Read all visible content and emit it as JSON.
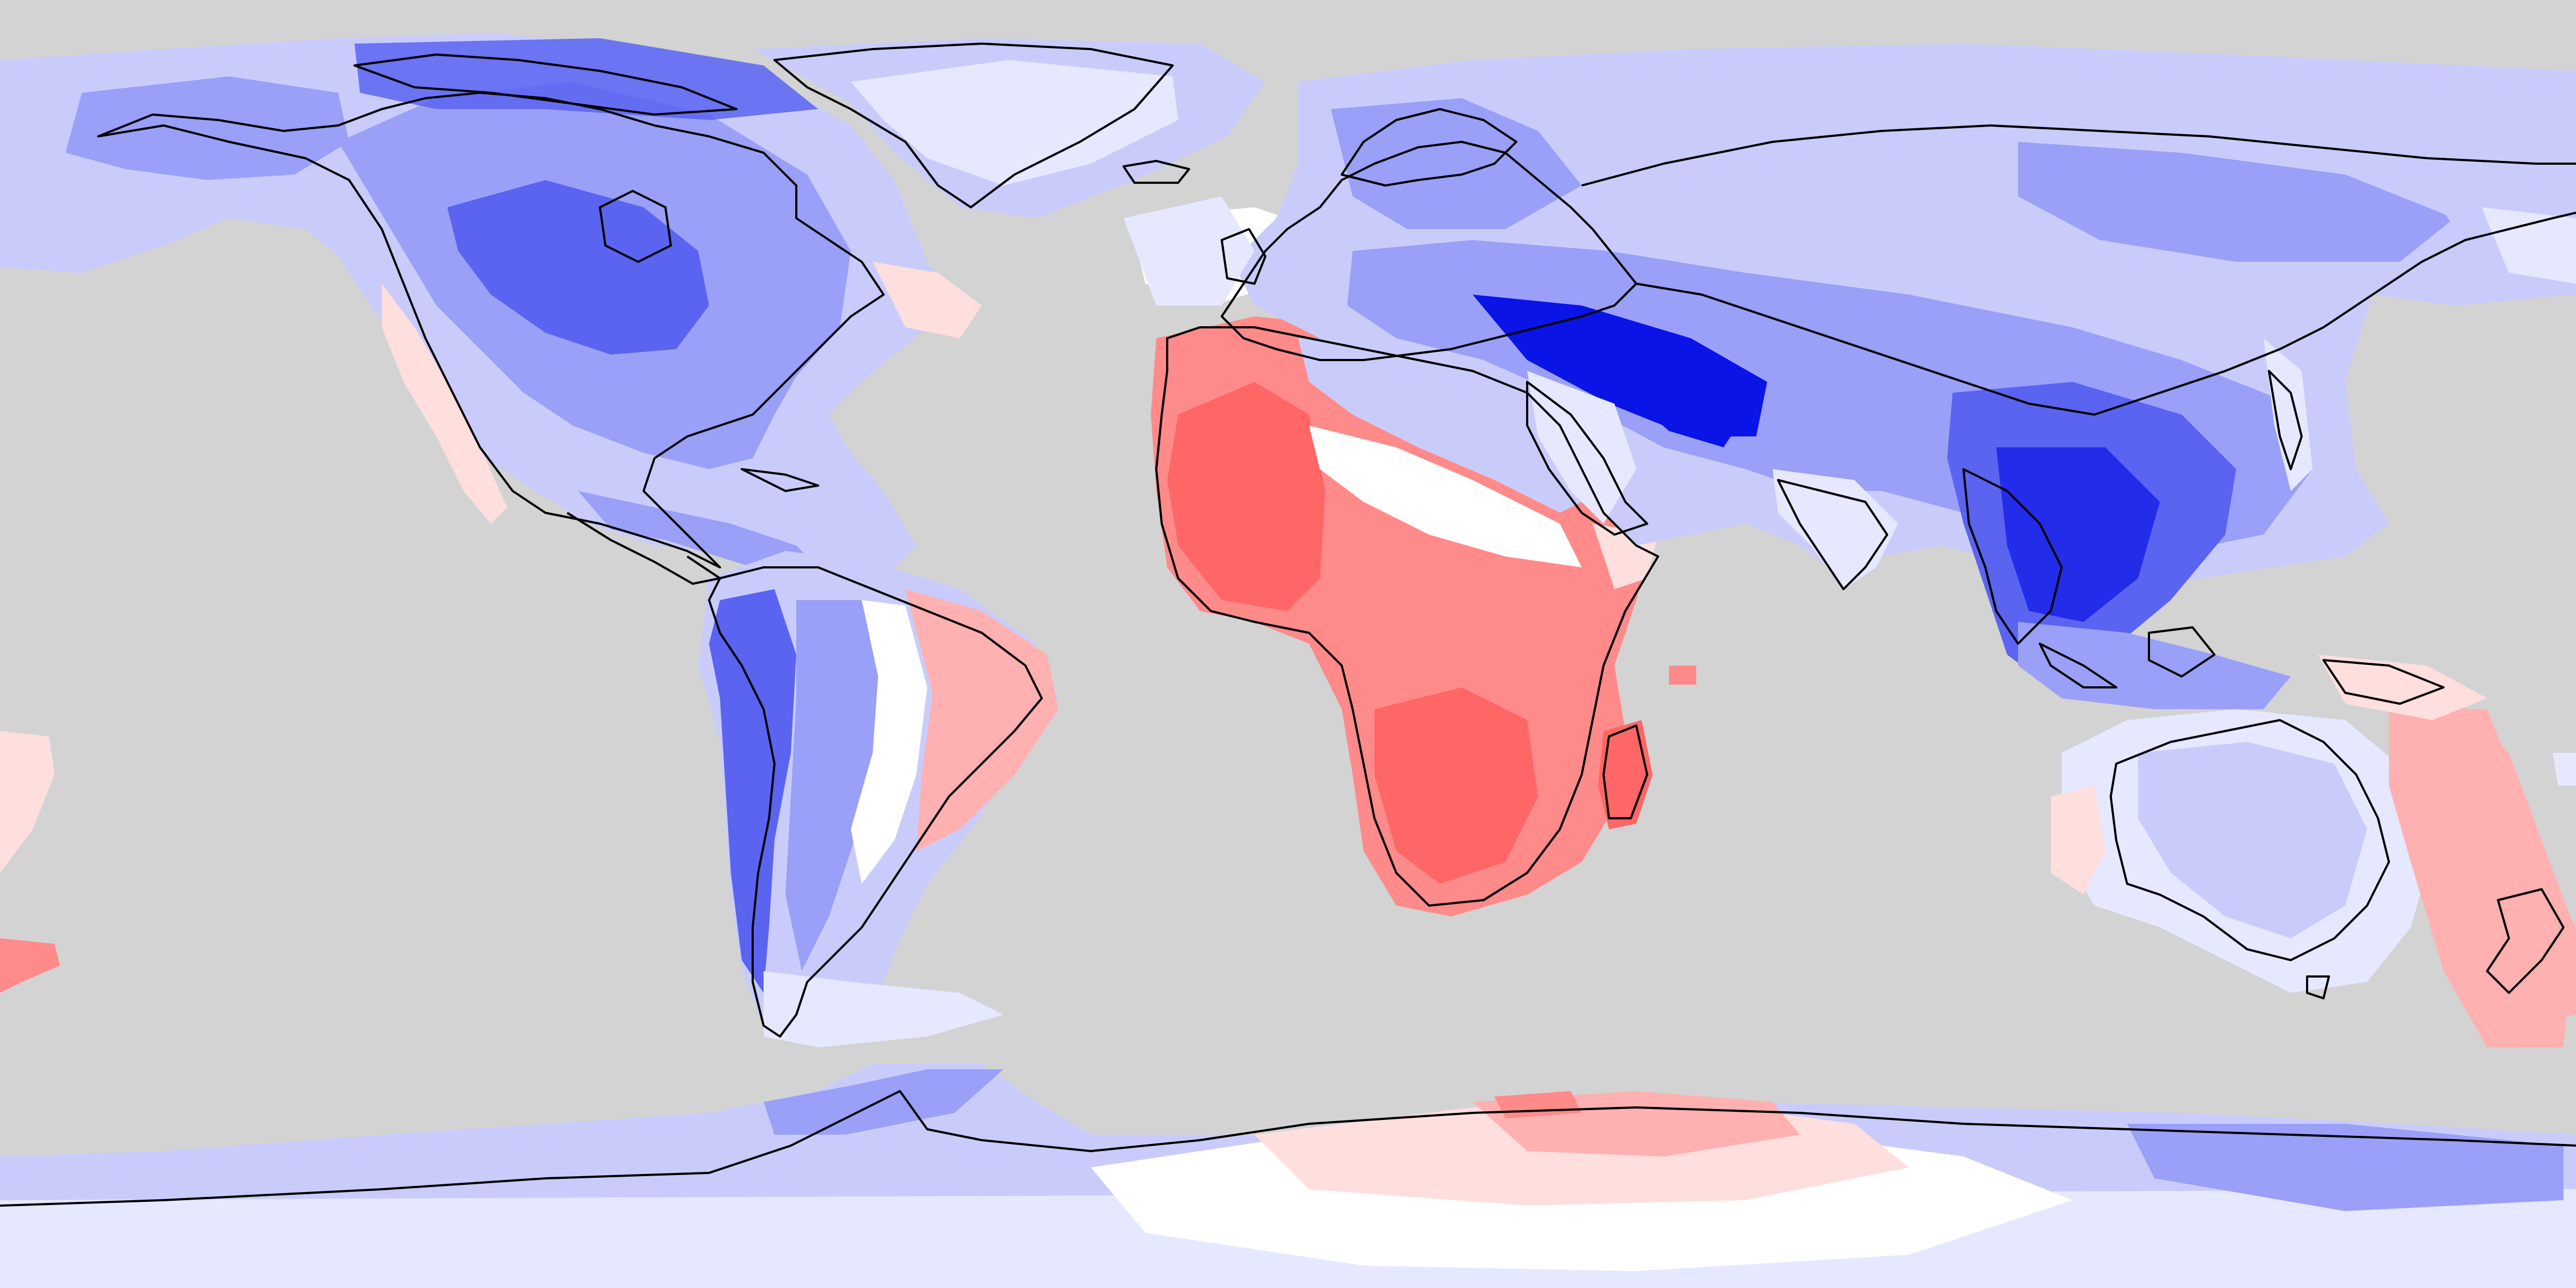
{
  "map": {
    "projection": "equirectangular",
    "ocean_color": "#d3d3d3",
    "coastline_color": "#000000",
    "colormap": [
      "#0a14e6",
      "#5a64f0",
      "#9aa0f8",
      "#c9ccfb",
      "#e6e8ff",
      "#ffffff",
      "#ffdede",
      "#ffb0b0",
      "#ff8a8a",
      "#ff6666"
    ],
    "legend": null,
    "title": ""
  },
  "regions": [
    {
      "name": "north-america",
      "field": [
        {
          "level": 3,
          "shape": "na-outer"
        },
        {
          "level": 2,
          "shape": "na-mid"
        },
        {
          "level": 1,
          "shape": "na-core"
        },
        {
          "level": 6,
          "shape": "na-west-coast"
        }
      ]
    },
    {
      "name": "greenland",
      "field": [
        {
          "level": 4,
          "shape": "greenland"
        }
      ]
    },
    {
      "name": "south-america",
      "field": [
        {
          "level": 3,
          "shape": "sa-outer"
        },
        {
          "level": 1,
          "shape": "sa-andes"
        },
        {
          "level": 7,
          "shape": "sa-brazil"
        }
      ]
    },
    {
      "name": "africa",
      "field": [
        {
          "level": 8,
          "shape": "af-outer"
        },
        {
          "level": 9,
          "shape": "af-core"
        },
        {
          "level": 5,
          "shape": "af-north"
        },
        {
          "level": 3,
          "shape": "af-sahara-blue"
        }
      ]
    },
    {
      "name": "eurasia",
      "field": [
        {
          "level": 3,
          "shape": "eu-outer"
        },
        {
          "level": 2,
          "shape": "eu-mid"
        },
        {
          "level": 0,
          "shape": "eu-core"
        },
        {
          "level": 1,
          "shape": "se-asia"
        }
      ]
    },
    {
      "name": "australia",
      "field": [
        {
          "level": 4,
          "shape": "au-outer"
        },
        {
          "level": 3,
          "shape": "au-core"
        },
        {
          "level": 7,
          "shape": "au-east"
        }
      ]
    },
    {
      "name": "antarctica",
      "field": [
        {
          "level": 3,
          "shape": "an-outer"
        },
        {
          "level": 5,
          "shape": "an-center"
        },
        {
          "level": 7,
          "shape": "an-red"
        }
      ]
    }
  ]
}
